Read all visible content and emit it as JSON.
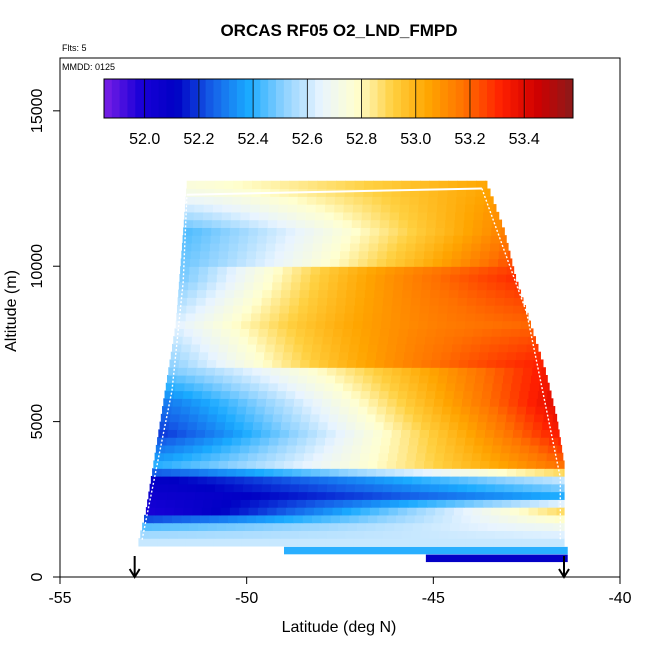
{
  "chart_data": {
    "type": "heatmap",
    "title": "ORCAS RF05 O2_LND_FMPD",
    "subtitle_flights": "Flts: 5",
    "subtitle_date": "MMDD: 0125",
    "xlabel": "Latitude (deg N)",
    "ylabel": "Altitude (m)",
    "xlim": [
      -55,
      -40
    ],
    "ylim": [
      0,
      16700
    ],
    "x_ticks": [
      -55,
      -50,
      -45,
      -40
    ],
    "x_tick_labels": [
      "-55",
      "-50",
      "-45",
      "-40"
    ],
    "y_ticks": [
      0,
      5000,
      10000,
      15000
    ],
    "y_tick_labels": [
      "0",
      "5000",
      "10000",
      "15000"
    ],
    "colorbar": {
      "min": 51.85,
      "max": 53.58,
      "ticks": [
        52.0,
        52.2,
        52.4,
        52.6,
        52.8,
        53.0,
        53.2,
        53.4
      ],
      "tick_labels": [
        "52.0",
        "52.2",
        "52.4",
        "52.6",
        "52.8",
        "53.0",
        "53.2",
        "53.4"
      ],
      "colors": [
        "#7b1fe6",
        "#1a00d8",
        "#0000c4",
        "#1560e8",
        "#1aaaff",
        "#8ed2ff",
        "#e8f4ff",
        "#ffffd0",
        "#ffd040",
        "#ffa500",
        "#ff7000",
        "#ff2000",
        "#d00000",
        "#8b1a1a"
      ]
    },
    "field": {
      "lat_range": [
        -53.0,
        -41.5
      ],
      "alt_range": [
        1000,
        12600
      ],
      "description_profile": [
        {
          "alt": 1100,
          "west": 52.6,
          "east": 52.6
        },
        {
          "alt": 1500,
          "west": 52.45,
          "east": 52.7
        },
        {
          "alt": 2000,
          "west": 52.0,
          "east": 52.9
        },
        {
          "alt": 2500,
          "west": 52.05,
          "east": 52.4
        },
        {
          "alt": 3000,
          "west": 52.1,
          "east": 52.6
        },
        {
          "alt": 3500,
          "west": 52.4,
          "east": 53.2
        },
        {
          "alt": 4500,
          "west": 52.2,
          "east": 53.35
        },
        {
          "alt": 5500,
          "west": 52.3,
          "east": 53.4
        },
        {
          "alt": 6500,
          "west": 52.5,
          "east": 53.35
        },
        {
          "alt": 8000,
          "west": 52.65,
          "east": 53.2
        },
        {
          "alt": 9500,
          "west": 52.5,
          "east": 53.3
        },
        {
          "alt": 11000,
          "west": 52.45,
          "east": 53.15
        },
        {
          "alt": 12400,
          "west": 52.75,
          "east": 53.05
        }
      ]
    },
    "flight_track_left": [
      [
        -52.8,
        1200
      ],
      [
        -52.0,
        6000
      ],
      [
        -51.7,
        9500
      ],
      [
        -51.6,
        12300
      ]
    ],
    "flight_track_top": [
      [
        -51.6,
        12300
      ],
      [
        -43.7,
        12500
      ]
    ],
    "flight_track_right": [
      [
        -43.7,
        12500
      ],
      [
        -42.5,
        8500
      ],
      [
        -41.6,
        3200
      ],
      [
        -41.6,
        1200
      ]
    ],
    "bottom_strips": [
      {
        "alt": 850,
        "lat_from": -49.0,
        "lat_to": -41.4,
        "value": 52.4
      },
      {
        "alt": 600,
        "lat_from": -45.2,
        "lat_to": -41.4,
        "value": 52.1
      }
    ],
    "arrows": [
      {
        "lat": -53.0,
        "label": "down-arrow"
      },
      {
        "lat": -41.5,
        "label": "down-arrow"
      }
    ]
  }
}
